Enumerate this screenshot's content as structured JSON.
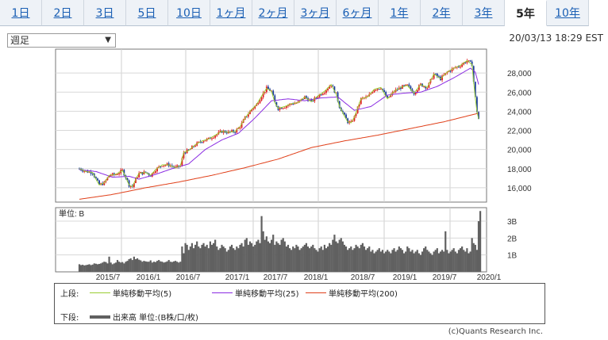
{
  "tabs": [
    {
      "label": "1日",
      "active": false
    },
    {
      "label": "2日",
      "active": false
    },
    {
      "label": "3日",
      "active": false
    },
    {
      "label": "5日",
      "active": false
    },
    {
      "label": "10日",
      "active": false
    },
    {
      "label": "1ヶ月",
      "active": false
    },
    {
      "label": "2ヶ月",
      "active": false
    },
    {
      "label": "3ヶ月",
      "active": false
    },
    {
      "label": "6ヶ月",
      "active": false
    },
    {
      "label": "1年",
      "active": false
    },
    {
      "label": "2年",
      "active": false
    },
    {
      "label": "3年",
      "active": false
    },
    {
      "label": "5年",
      "active": true
    },
    {
      "label": "10年",
      "active": false
    }
  ],
  "period_select": {
    "value": "週足"
  },
  "timestamp": "20/03/13 18:29 EST",
  "volume_unit_label": "単位: B",
  "legend": {
    "upper_label": "上段:",
    "lower_label": "下段:",
    "ma5": "単純移動平均(5)",
    "ma25": "単純移動平均(25)",
    "ma200": "単純移動平均(200)",
    "volume": "出来高 単位:(B株/口/枚)"
  },
  "copyright": "(c)Quants Research Inc.",
  "colors": {
    "ma5": "#9acd32",
    "ma25": "#8a2be2",
    "ma200": "#e0401a",
    "up": "#e02020",
    "down": "#1a3a9a",
    "volume": "#606060"
  },
  "chart_data": [
    {
      "type": "candlestick",
      "x": [
        "2015/7",
        "2016/1",
        "2016/7",
        "2017/1",
        "2017/7",
        "2018/1",
        "2018/7",
        "2019/1",
        "2019/7",
        "2020/1"
      ],
      "ylim": [
        14500,
        30500
      ],
      "yticks": [
        16000,
        18000,
        20000,
        22000,
        24000,
        26000,
        28000
      ],
      "ytick_labels": [
        "16,000",
        "18,000",
        "20,000",
        "22,000",
        "24,000",
        "26,000",
        "28,000"
      ],
      "xtick_labels": [
        "2015/7",
        "2016/1",
        "2016/7",
        "2017/1",
        "2017/7",
        "2018/1",
        "2018/7",
        "2019/1",
        "2019/7",
        "2020/1"
      ],
      "grid": true,
      "close_trend": [
        [
          0,
          18000
        ],
        [
          4,
          17700
        ],
        [
          8,
          17600
        ],
        [
          10,
          16900
        ],
        [
          12,
          16300
        ],
        [
          15,
          16500
        ],
        [
          18,
          17300
        ],
        [
          22,
          17400
        ],
        [
          26,
          17800
        ],
        [
          28,
          17100
        ],
        [
          30,
          16300
        ],
        [
          32,
          16100
        ],
        [
          34,
          16900
        ],
        [
          36,
          17500
        ],
        [
          40,
          17600
        ],
        [
          43,
          17300
        ],
        [
          46,
          17900
        ],
        [
          50,
          18400
        ],
        [
          54,
          18400
        ],
        [
          58,
          18100
        ],
        [
          61,
          18300
        ],
        [
          63,
          19700
        ],
        [
          66,
          19900
        ],
        [
          70,
          20500
        ],
        [
          74,
          20900
        ],
        [
          78,
          21100
        ],
        [
          82,
          21500
        ],
        [
          86,
          21900
        ],
        [
          90,
          21800
        ],
        [
          94,
          21900
        ],
        [
          97,
          22400
        ],
        [
          100,
          23300
        ],
        [
          104,
          24200
        ],
        [
          107,
          24700
        ],
        [
          110,
          25600
        ],
        [
          113,
          26400
        ],
        [
          116,
          26100
        ],
        [
          118,
          24900
        ],
        [
          120,
          24300
        ],
        [
          124,
          24500
        ],
        [
          128,
          24800
        ],
        [
          132,
          24900
        ],
        [
          136,
          25500
        ],
        [
          140,
          25000
        ],
        [
          144,
          25600
        ],
        [
          148,
          26100
        ],
        [
          152,
          26800
        ],
        [
          155,
          25800
        ],
        [
          157,
          24500
        ],
        [
          160,
          23500
        ],
        [
          162,
          22900
        ],
        [
          164,
          22800
        ],
        [
          166,
          23400
        ],
        [
          170,
          25300
        ],
        [
          174,
          25500
        ],
        [
          178,
          26300
        ],
        [
          182,
          26500
        ],
        [
          186,
          25300
        ],
        [
          190,
          26100
        ],
        [
          194,
          26500
        ],
        [
          198,
          26700
        ],
        [
          202,
          25900
        ],
        [
          206,
          26800
        ],
        [
          210,
          26500
        ],
        [
          214,
          27900
        ],
        [
          218,
          27400
        ],
        [
          222,
          28100
        ],
        [
          226,
          28500
        ],
        [
          230,
          28800
        ],
        [
          234,
          29300
        ],
        [
          237,
          28900
        ],
        [
          238,
          27100
        ],
        [
          239,
          25400
        ],
        [
          240,
          24000
        ],
        [
          241,
          23200
        ]
      ],
      "ma25_trend": [
        [
          0,
          17900
        ],
        [
          10,
          17700
        ],
        [
          20,
          17100
        ],
        [
          30,
          17200
        ],
        [
          36,
          16900
        ],
        [
          46,
          17400
        ],
        [
          56,
          18000
        ],
        [
          66,
          18500
        ],
        [
          76,
          20000
        ],
        [
          86,
          21000
        ],
        [
          96,
          21700
        ],
        [
          106,
          23300
        ],
        [
          116,
          25100
        ],
        [
          126,
          25300
        ],
        [
          136,
          25100
        ],
        [
          146,
          25400
        ],
        [
          156,
          25500
        ],
        [
          166,
          24100
        ],
        [
          176,
          24500
        ],
        [
          186,
          25700
        ],
        [
          196,
          25900
        ],
        [
          206,
          26000
        ],
        [
          216,
          26600
        ],
        [
          226,
          27500
        ],
        [
          236,
          28500
        ],
        [
          239,
          28100
        ],
        [
          241,
          26800
        ]
      ],
      "ma200_trend": [
        [
          0,
          14800
        ],
        [
          20,
          15300
        ],
        [
          40,
          16000
        ],
        [
          60,
          16600
        ],
        [
          80,
          17300
        ],
        [
          100,
          18100
        ],
        [
          120,
          19000
        ],
        [
          140,
          20200
        ],
        [
          160,
          20900
        ],
        [
          180,
          21500
        ],
        [
          200,
          22200
        ],
        [
          220,
          22900
        ],
        [
          241,
          23800
        ]
      ]
    },
    {
      "type": "bar",
      "series": [
        {
          "name": "出来高 単位:(B株/口/枚)"
        }
      ],
      "ylim": [
        0,
        3.8
      ],
      "yticks": [
        1,
        2,
        3
      ],
      "ytick_labels": [
        "1B",
        "2B",
        "3B"
      ],
      "values": [
        0.45,
        0.4,
        0.42,
        0.38,
        0.4,
        0.42,
        0.45,
        0.4,
        0.43,
        0.5,
        0.48,
        0.45,
        0.47,
        0.5,
        0.55,
        0.6,
        0.58,
        0.5,
        0.9,
        0.55,
        0.45,
        0.5,
        0.55,
        0.7,
        0.6,
        0.55,
        0.58,
        0.5,
        0.6,
        0.65,
        0.75,
        0.8,
        0.7,
        0.9,
        0.75,
        0.8,
        0.72,
        0.68,
        0.6,
        0.65,
        0.62,
        0.6,
        0.6,
        0.68,
        0.55,
        0.6,
        0.58,
        0.65,
        0.7,
        0.62,
        0.6,
        0.55,
        0.58,
        0.62,
        0.7,
        0.6,
        0.58,
        0.62,
        0.65,
        0.6,
        0.55,
        0.6,
        1.5,
        1.1,
        1.7,
        1.6,
        1.3,
        1.5,
        1.7,
        1.4,
        1.6,
        1.8,
        1.5,
        1.4,
        1.6,
        1.7,
        1.5,
        1.6,
        1.4,
        1.8,
        1.6,
        1.7,
        1.9,
        1.5,
        1.3,
        1.4,
        1.6,
        1.5,
        1.4,
        1.2,
        1.3,
        1.5,
        1.6,
        1.4,
        1.3,
        1.5,
        1.4,
        1.6,
        1.7,
        1.5,
        1.9,
        2.0,
        1.6,
        1.8,
        1.7,
        1.5,
        1.6,
        1.8,
        1.9,
        1.7,
        3.3,
        2.4,
        1.9,
        2.1,
        1.8,
        1.7,
        1.9,
        2.2,
        1.6,
        1.8,
        1.7,
        1.6,
        1.9,
        2.0,
        1.8,
        1.5,
        1.6,
        1.4,
        1.3,
        1.5,
        1.4,
        1.6,
        1.5,
        1.3,
        1.4,
        1.5,
        1.6,
        1.7,
        1.5,
        1.4,
        1.5,
        1.6,
        1.4,
        1.3,
        1.2,
        1.4,
        1.5,
        1.3,
        1.6,
        1.4,
        1.5,
        1.7,
        1.6,
        1.9,
        2.2,
        1.8,
        1.7,
        1.9,
        2.0,
        1.8,
        1.6,
        1.5,
        1.3,
        1.4,
        1.5,
        1.3,
        1.4,
        1.6,
        1.5,
        1.4,
        1.6,
        1.7,
        1.5,
        1.3,
        1.4,
        1.5,
        1.2,
        1.3,
        1.1,
        1.2,
        1.3,
        1.4,
        1.2,
        1.3,
        1.1,
        1.2,
        1.3,
        1.2,
        1.1,
        1.3,
        1.4,
        1.2,
        1.3,
        1.5,
        1.4,
        1.3,
        1.1,
        1.2,
        1.5,
        1.4,
        1.2,
        1.3,
        1.1,
        1.2,
        1.3,
        1.1,
        1.0,
        1.2,
        1.4,
        1.5,
        1.3,
        1.2,
        1.1,
        1.0,
        1.2,
        1.3,
        1.4,
        1.1,
        1.2,
        1.3,
        1.2,
        2.4,
        1.3,
        1.1,
        1.2,
        1.3,
        1.4,
        1.2,
        1.1,
        1.3,
        1.4,
        1.5,
        1.3,
        1.2,
        1.4,
        1.1,
        1.2,
        2.0,
        1.7,
        1.6,
        1.3,
        3.0,
        3.6
      ]
    }
  ]
}
